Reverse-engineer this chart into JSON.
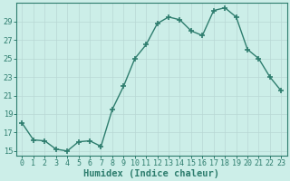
{
  "x": [
    0,
    1,
    2,
    3,
    4,
    5,
    6,
    7,
    8,
    9,
    10,
    11,
    12,
    13,
    14,
    15,
    16,
    17,
    18,
    19,
    20,
    21,
    22,
    23
  ],
  "y": [
    18,
    16.2,
    16.1,
    15.2,
    15.0,
    16.0,
    16.1,
    15.5,
    19.5,
    22.0,
    25.0,
    26.5,
    28.8,
    29.5,
    29.2,
    28.0,
    27.5,
    30.2,
    30.5,
    29.5,
    26.0,
    25.0,
    23.0,
    21.5
  ],
  "line_color": "#2e7d6e",
  "marker": "+",
  "marker_size": 4,
  "marker_lw": 1.2,
  "line_width": 1.0,
  "bg_color": "#cceee8",
  "grid_color": "#b8d8d4",
  "plot_bg": "#cceee8",
  "xlabel": "Humidex (Indice chaleur)",
  "ylim": [
    14.5,
    31
  ],
  "xlim": [
    -0.5,
    23.5
  ],
  "yticks": [
    15,
    17,
    19,
    21,
    23,
    25,
    27,
    29
  ],
  "xticks": [
    0,
    1,
    2,
    3,
    4,
    5,
    6,
    7,
    8,
    9,
    10,
    11,
    12,
    13,
    14,
    15,
    16,
    17,
    18,
    19,
    20,
    21,
    22,
    23
  ],
  "axis_color": "#2e7d6e",
  "tick_fontsize": 6.0,
  "label_fontsize": 7.5,
  "label_fontweight": "bold"
}
